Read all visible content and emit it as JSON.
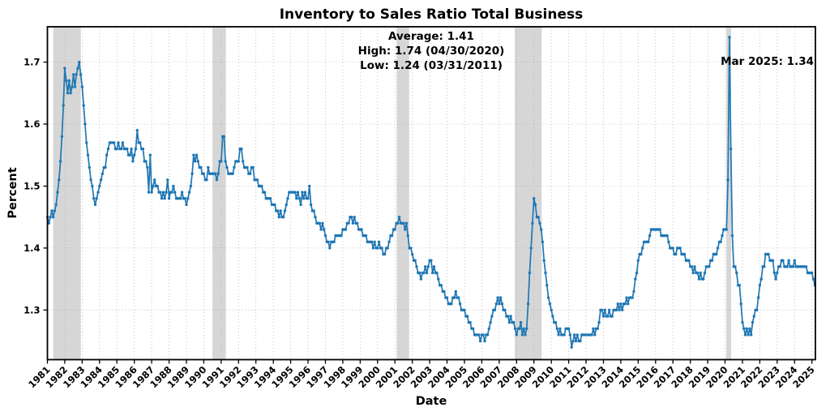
{
  "title": "Inventory to Sales Ratio Total Business",
  "xlabel": "Date",
  "ylabel": "Percent",
  "annotations": {
    "stats_line1": "Average: 1.41",
    "stats_line2": "High: 1.74 (04/30/2020)",
    "stats_line3": "Low: 1.24 (03/31/2011)",
    "latest": "Mar 2025: 1.34"
  },
  "chart_data": {
    "type": "line",
    "frequency": "monthly",
    "x_start": "1981-01",
    "x_end": "2025-03",
    "x_start_year": 1981,
    "xlim": [
      1981.0,
      2025.2
    ],
    "ylim": [
      1.22,
      1.757
    ],
    "xticks": [
      1981,
      1982,
      1983,
      1984,
      1985,
      1986,
      1987,
      1988,
      1989,
      1990,
      1991,
      1992,
      1993,
      1994,
      1995,
      1996,
      1997,
      1998,
      1999,
      2000,
      2001,
      2002,
      2003,
      2004,
      2005,
      2006,
      2007,
      2008,
      2009,
      2010,
      2011,
      2012,
      2013,
      2014,
      2015,
      2016,
      2017,
      2018,
      2019,
      2020,
      2021,
      2022,
      2023,
      2024,
      2025
    ],
    "yticks": [
      1.3,
      1.4,
      1.5,
      1.6,
      1.7
    ],
    "line_color": "#1f77b4",
    "marker": "square-dot",
    "grid": true,
    "grid_color": "#aaaaaa",
    "recession_color": "#9e9e9e",
    "recession_alpha": 0.42,
    "recessions": [
      [
        1981.33,
        1982.92
      ],
      [
        1990.5,
        1991.27
      ],
      [
        2001.1,
        2001.82
      ],
      [
        2007.9,
        2009.45
      ],
      [
        2020.07,
        2020.35
      ]
    ],
    "values": [
      1.45,
      1.44,
      1.45,
      1.46,
      1.45,
      1.46,
      1.47,
      1.49,
      1.51,
      1.54,
      1.58,
      1.63,
      1.69,
      1.67,
      1.65,
      1.67,
      1.65,
      1.66,
      1.68,
      1.66,
      1.68,
      1.69,
      1.7,
      1.68,
      1.66,
      1.63,
      1.6,
      1.57,
      1.55,
      1.53,
      1.51,
      1.5,
      1.48,
      1.47,
      1.48,
      1.49,
      1.5,
      1.51,
      1.52,
      1.53,
      1.53,
      1.55,
      1.56,
      1.57,
      1.57,
      1.57,
      1.57,
      1.56,
      1.56,
      1.57,
      1.56,
      1.56,
      1.57,
      1.56,
      1.56,
      1.56,
      1.55,
      1.55,
      1.56,
      1.54,
      1.55,
      1.56,
      1.59,
      1.57,
      1.57,
      1.56,
      1.56,
      1.54,
      1.54,
      1.53,
      1.49,
      1.55,
      1.49,
      1.5,
      1.51,
      1.5,
      1.5,
      1.49,
      1.49,
      1.48,
      1.49,
      1.48,
      1.49,
      1.51,
      1.48,
      1.49,
      1.49,
      1.5,
      1.49,
      1.48,
      1.48,
      1.48,
      1.48,
      1.49,
      1.48,
      1.48,
      1.47,
      1.48,
      1.49,
      1.5,
      1.52,
      1.55,
      1.54,
      1.55,
      1.54,
      1.53,
      1.53,
      1.52,
      1.52,
      1.51,
      1.51,
      1.53,
      1.52,
      1.52,
      1.52,
      1.52,
      1.52,
      1.51,
      1.52,
      1.54,
      1.54,
      1.58,
      1.58,
      1.54,
      1.53,
      1.52,
      1.52,
      1.52,
      1.52,
      1.53,
      1.54,
      1.54,
      1.54,
      1.56,
      1.56,
      1.54,
      1.53,
      1.53,
      1.53,
      1.52,
      1.52,
      1.53,
      1.53,
      1.51,
      1.51,
      1.51,
      1.5,
      1.5,
      1.5,
      1.49,
      1.49,
      1.48,
      1.48,
      1.48,
      1.48,
      1.47,
      1.47,
      1.47,
      1.46,
      1.46,
      1.45,
      1.46,
      1.45,
      1.45,
      1.46,
      1.47,
      1.48,
      1.49,
      1.49,
      1.49,
      1.49,
      1.49,
      1.48,
      1.49,
      1.48,
      1.47,
      1.49,
      1.48,
      1.49,
      1.48,
      1.48,
      1.5,
      1.47,
      1.46,
      1.46,
      1.45,
      1.44,
      1.44,
      1.44,
      1.43,
      1.44,
      1.43,
      1.42,
      1.41,
      1.41,
      1.4,
      1.41,
      1.41,
      1.41,
      1.42,
      1.42,
      1.42,
      1.42,
      1.42,
      1.43,
      1.43,
      1.43,
      1.44,
      1.44,
      1.45,
      1.45,
      1.44,
      1.45,
      1.44,
      1.44,
      1.43,
      1.43,
      1.43,
      1.42,
      1.42,
      1.42,
      1.41,
      1.41,
      1.41,
      1.41,
      1.4,
      1.41,
      1.4,
      1.4,
      1.41,
      1.4,
      1.4,
      1.39,
      1.39,
      1.4,
      1.4,
      1.41,
      1.42,
      1.42,
      1.43,
      1.43,
      1.44,
      1.44,
      1.45,
      1.44,
      1.44,
      1.44,
      1.43,
      1.44,
      1.42,
      1.4,
      1.4,
      1.39,
      1.38,
      1.38,
      1.37,
      1.36,
      1.36,
      1.35,
      1.36,
      1.36,
      1.37,
      1.36,
      1.37,
      1.38,
      1.38,
      1.36,
      1.37,
      1.36,
      1.36,
      1.35,
      1.34,
      1.34,
      1.33,
      1.33,
      1.32,
      1.32,
      1.31,
      1.31,
      1.31,
      1.32,
      1.32,
      1.33,
      1.32,
      1.32,
      1.31,
      1.3,
      1.3,
      1.3,
      1.29,
      1.29,
      1.28,
      1.28,
      1.27,
      1.27,
      1.26,
      1.26,
      1.26,
      1.26,
      1.25,
      1.26,
      1.26,
      1.25,
      1.26,
      1.26,
      1.27,
      1.28,
      1.29,
      1.3,
      1.3,
      1.31,
      1.32,
      1.31,
      1.32,
      1.31,
      1.3,
      1.3,
      1.29,
      1.29,
      1.28,
      1.29,
      1.28,
      1.28,
      1.27,
      1.26,
      1.27,
      1.27,
      1.28,
      1.26,
      1.27,
      1.26,
      1.27,
      1.31,
      1.36,
      1.4,
      1.44,
      1.48,
      1.47,
      1.45,
      1.45,
      1.44,
      1.43,
      1.41,
      1.38,
      1.36,
      1.34,
      1.32,
      1.31,
      1.3,
      1.29,
      1.28,
      1.28,
      1.27,
      1.26,
      1.27,
      1.26,
      1.26,
      1.26,
      1.27,
      1.27,
      1.27,
      1.26,
      1.24,
      1.25,
      1.26,
      1.25,
      1.26,
      1.25,
      1.25,
      1.26,
      1.26,
      1.26,
      1.26,
      1.26,
      1.26,
      1.26,
      1.26,
      1.27,
      1.26,
      1.27,
      1.27,
      1.28,
      1.3,
      1.3,
      1.29,
      1.3,
      1.29,
      1.29,
      1.3,
      1.29,
      1.29,
      1.3,
      1.3,
      1.3,
      1.31,
      1.3,
      1.31,
      1.3,
      1.31,
      1.31,
      1.32,
      1.31,
      1.32,
      1.32,
      1.32,
      1.33,
      1.35,
      1.36,
      1.38,
      1.39,
      1.39,
      1.4,
      1.41,
      1.41,
      1.41,
      1.41,
      1.42,
      1.43,
      1.43,
      1.43,
      1.43,
      1.43,
      1.43,
      1.43,
      1.42,
      1.42,
      1.42,
      1.42,
      1.42,
      1.41,
      1.4,
      1.4,
      1.4,
      1.39,
      1.39,
      1.4,
      1.4,
      1.4,
      1.39,
      1.39,
      1.39,
      1.38,
      1.38,
      1.38,
      1.37,
      1.37,
      1.36,
      1.37,
      1.36,
      1.36,
      1.35,
      1.36,
      1.35,
      1.35,
      1.36,
      1.37,
      1.37,
      1.37,
      1.38,
      1.38,
      1.39,
      1.39,
      1.39,
      1.4,
      1.41,
      1.41,
      1.42,
      1.43,
      1.43,
      1.43,
      1.51,
      1.74,
      1.56,
      1.42,
      1.37,
      1.37,
      1.36,
      1.34,
      1.34,
      1.31,
      1.28,
      1.27,
      1.26,
      1.27,
      1.26,
      1.27,
      1.26,
      1.28,
      1.29,
      1.3,
      1.3,
      1.32,
      1.34,
      1.35,
      1.37,
      1.37,
      1.39,
      1.39,
      1.39,
      1.38,
      1.38,
      1.38,
      1.36,
      1.35,
      1.36,
      1.37,
      1.37,
      1.38,
      1.38,
      1.37,
      1.37,
      1.37,
      1.38,
      1.37,
      1.37,
      1.37,
      1.38,
      1.37,
      1.37,
      1.37,
      1.37,
      1.37,
      1.37,
      1.37,
      1.37,
      1.36,
      1.36,
      1.36,
      1.36,
      1.35,
      1.34
    ]
  }
}
